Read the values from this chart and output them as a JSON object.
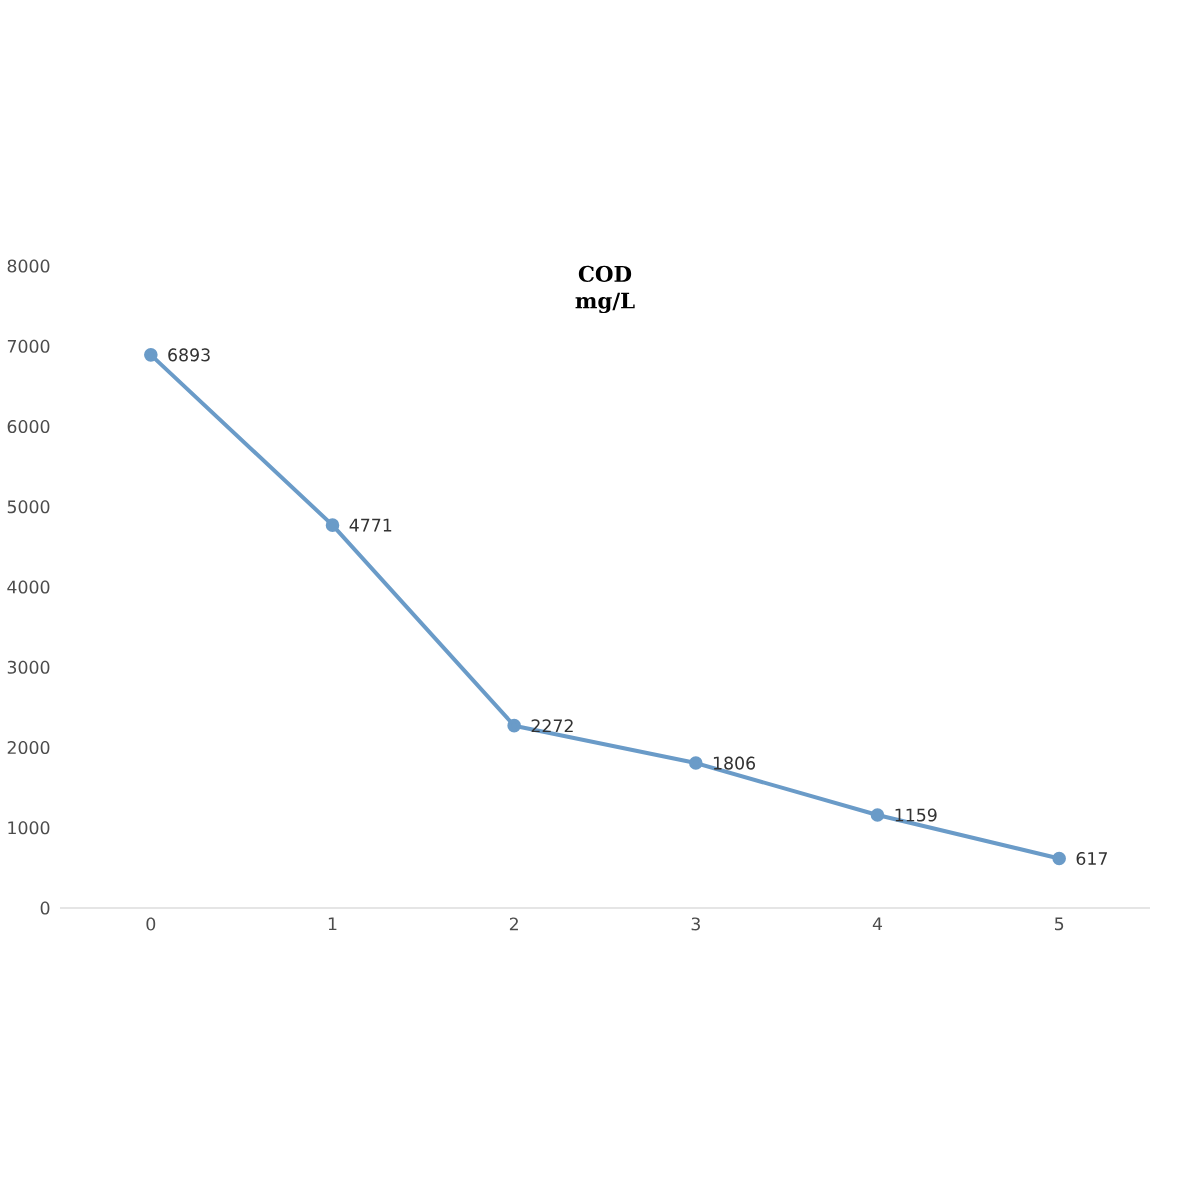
{
  "chart_data": {
    "type": "line",
    "title": "COD",
    "subtitle": "mg/L",
    "x": [
      0,
      1,
      2,
      3,
      4,
      5
    ],
    "series": [
      {
        "color": "#6a9bc8",
        "values": [
          6893,
          4771,
          2272,
          1806,
          1159,
          617
        ]
      }
    ],
    "xlim": [
      -0.5,
      5.5
    ],
    "xticks": [
      0,
      1,
      2,
      3,
      4,
      5
    ],
    "ylim": [
      0,
      8000
    ],
    "yticks": [
      0,
      1000,
      2000,
      3000,
      4000,
      5000,
      6000,
      7000,
      8000
    ],
    "data_labels": true,
    "marker": "circle",
    "grid": false
  }
}
